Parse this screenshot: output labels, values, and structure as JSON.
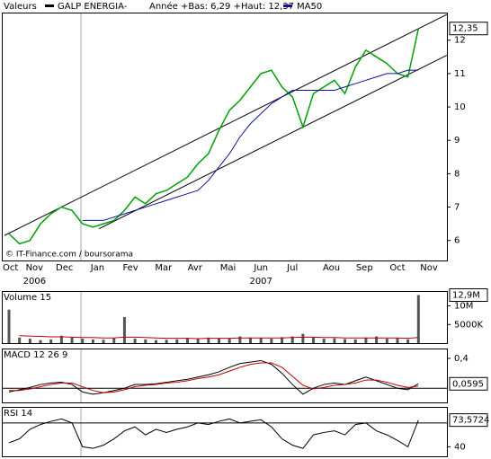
{
  "chart_data": [
    {
      "type": "line",
      "title": "Valeurs",
      "subtitle": "Année +Bas: 6,29 +Haut: 12,37",
      "annotation": "© IT-Finance.com / boursorama",
      "x": [
        3,
        10,
        17,
        24,
        31,
        38,
        45,
        52,
        59,
        66,
        73,
        80,
        87,
        94,
        101,
        108,
        115,
        122,
        129,
        136,
        143,
        150,
        157,
        164,
        171,
        178,
        185,
        192,
        199,
        206,
        213,
        220,
        227,
        234,
        241,
        248,
        255,
        262,
        269,
        276
      ],
      "xlim": [
        0,
        295
      ],
      "xticks": [
        {
          "value": 4,
          "label": "Oct"
        },
        {
          "value": 20,
          "label": "Nov"
        },
        {
          "value": 40,
          "label": "Dec"
        },
        {
          "value": 62,
          "label": "Jan"
        },
        {
          "value": 84,
          "label": "Fev"
        },
        {
          "value": 106,
          "label": "Mar"
        },
        {
          "value": 127,
          "label": "Avr"
        },
        {
          "value": 149,
          "label": "Mai"
        },
        {
          "value": 171,
          "label": "Jun"
        },
        {
          "value": 192,
          "label": "Jul"
        },
        {
          "value": 218,
          "label": "Aou"
        },
        {
          "value": 240,
          "label": "Sep"
        },
        {
          "value": 262,
          "label": "Oct"
        },
        {
          "value": 283,
          "label": "Nov"
        }
      ],
      "year_labels": [
        {
          "value": 20,
          "label": "2006"
        },
        {
          "value": 171,
          "label": "2007"
        }
      ],
      "ylim": [
        5.4,
        12.8
      ],
      "yticks": [
        6,
        7,
        8,
        9,
        10,
        11,
        12
      ],
      "line_color": "#00a000",
      "series": [
        {
          "name": "GALP ENERGIA-",
          "color": "#000000",
          "values": [
            6.2,
            5.9,
            6.0,
            6.5,
            6.8,
            7.0,
            6.9,
            6.5,
            6.4,
            6.5,
            6.6,
            6.9,
            7.3,
            7.1,
            7.4,
            7.5,
            7.7,
            7.9,
            8.3,
            8.6,
            9.3,
            9.9,
            10.2,
            10.6,
            11.0,
            11.1,
            10.6,
            10.3,
            9.4,
            10.4,
            10.6,
            10.8,
            10.4,
            11.2,
            11.7,
            11.5,
            11.3,
            11.0,
            10.9,
            12.35
          ]
        },
        {
          "name": "MA50",
          "color": "#1010a0",
          "values": [
            null,
            null,
            null,
            null,
            null,
            null,
            null,
            6.6,
            6.6,
            6.6,
            6.7,
            6.8,
            6.9,
            7.0,
            7.1,
            7.2,
            7.3,
            7.4,
            7.5,
            7.8,
            8.2,
            8.6,
            9.1,
            9.5,
            9.8,
            10.1,
            10.3,
            10.5,
            10.5,
            10.5,
            10.5,
            10.5,
            10.6,
            10.7,
            10.8,
            10.9,
            11.0,
            11.0,
            11.1,
            11.1
          ]
        }
      ],
      "trendlines": [
        {
          "x": [
            0,
            295
          ],
          "y": [
            6.15,
            12.77
          ]
        },
        {
          "x": [
            63,
            295
          ],
          "y": [
            6.35,
            11.55
          ]
        }
      ],
      "last": {
        "value": 12.35,
        "label": "12,35"
      }
    },
    {
      "type": "bar",
      "title": "Volume 15",
      "color": "#555555",
      "ma_color": "#c00000",
      "values": [
        9000000,
        1500000,
        1200000,
        800000,
        1000000,
        2000000,
        1500000,
        1200000,
        1000000,
        900000,
        1300000,
        7000000,
        1200000,
        1000000,
        800000,
        900000,
        1000000,
        1400000,
        1200000,
        1500000,
        1300000,
        1200000,
        1800000,
        1500000,
        1400000,
        1200000,
        1600000,
        1800000,
        2500000,
        1500000,
        1200000,
        1300000,
        1100000,
        1000000,
        1500000,
        1800000,
        1200000,
        1400000,
        1000000,
        12900000
      ],
      "ma_values": [
        null,
        2000000,
        1900000,
        1800000,
        1700000,
        1700000,
        1600000,
        1500000,
        1500000,
        1400000,
        1400000,
        1600000,
        1600000,
        1500000,
        1400000,
        1300000,
        1300000,
        1300000,
        1200000,
        1300000,
        1300000,
        1300000,
        1400000,
        1400000,
        1400000,
        1400000,
        1400000,
        1500000,
        1600000,
        1600000,
        1500000,
        1500000,
        1400000,
        1400000,
        1400000,
        1400000,
        1400000,
        1400000,
        1300000,
        1500000
      ],
      "ylim": [
        0,
        13750000
      ],
      "yticks": [
        {
          "value": 10000000,
          "label": "10M"
        },
        {
          "value": 5000000,
          "label": "5000K"
        }
      ],
      "last": {
        "value": 12900000,
        "label": "12,9M"
      }
    },
    {
      "type": "line",
      "title": "MACD 12 26 9",
      "series": [
        {
          "color": "#000000",
          "values": [
            -0.05,
            -0.02,
            0.01,
            0.05,
            0.07,
            0.08,
            0.05,
            -0.05,
            -0.08,
            -0.06,
            -0.03,
            0.0,
            0.05,
            0.05,
            0.06,
            0.08,
            0.1,
            0.12,
            0.15,
            0.18,
            0.22,
            0.28,
            0.33,
            0.35,
            0.37,
            0.32,
            0.2,
            0.05,
            -0.08,
            0.0,
            0.05,
            0.07,
            0.05,
            0.1,
            0.15,
            0.1,
            0.05,
            0.0,
            -0.02,
            0.06
          ]
        },
        {
          "color": "#c00000",
          "values": [
            -0.03,
            -0.03,
            -0.01,
            0.02,
            0.05,
            0.07,
            0.07,
            0.02,
            -0.03,
            -0.06,
            -0.05,
            -0.02,
            0.02,
            0.04,
            0.05,
            0.07,
            0.08,
            0.1,
            0.13,
            0.15,
            0.18,
            0.23,
            0.28,
            0.32,
            0.34,
            0.34,
            0.28,
            0.16,
            0.04,
            -0.01,
            0.01,
            0.04,
            0.05,
            0.07,
            0.11,
            0.11,
            0.08,
            0.04,
            0.01,
            0.03
          ]
        }
      ],
      "ylim": [
        -0.19,
        0.52
      ],
      "yticks": [
        {
          "value": 0.4,
          "label": "0,4"
        }
      ],
      "ref_lines": [
        0
      ],
      "last": {
        "value": 0.0595,
        "label": "0,0595"
      }
    },
    {
      "type": "line",
      "title": "RSI 14",
      "series": [
        {
          "color": "#000000",
          "values": [
            45,
            50,
            62,
            68,
            72,
            75,
            70,
            40,
            38,
            42,
            50,
            60,
            65,
            55,
            62,
            58,
            62,
            65,
            70,
            68,
            72,
            75,
            70,
            72,
            74,
            65,
            50,
            42,
            38,
            55,
            58,
            60,
            55,
            68,
            70,
            60,
            55,
            48,
            40,
            73.5724
          ]
        }
      ],
      "ylim": [
        28,
        89
      ],
      "yticks": [
        40
      ],
      "ref_lines": [
        70
      ],
      "last": {
        "value": 73.5724,
        "label": "73,5724"
      }
    }
  ]
}
